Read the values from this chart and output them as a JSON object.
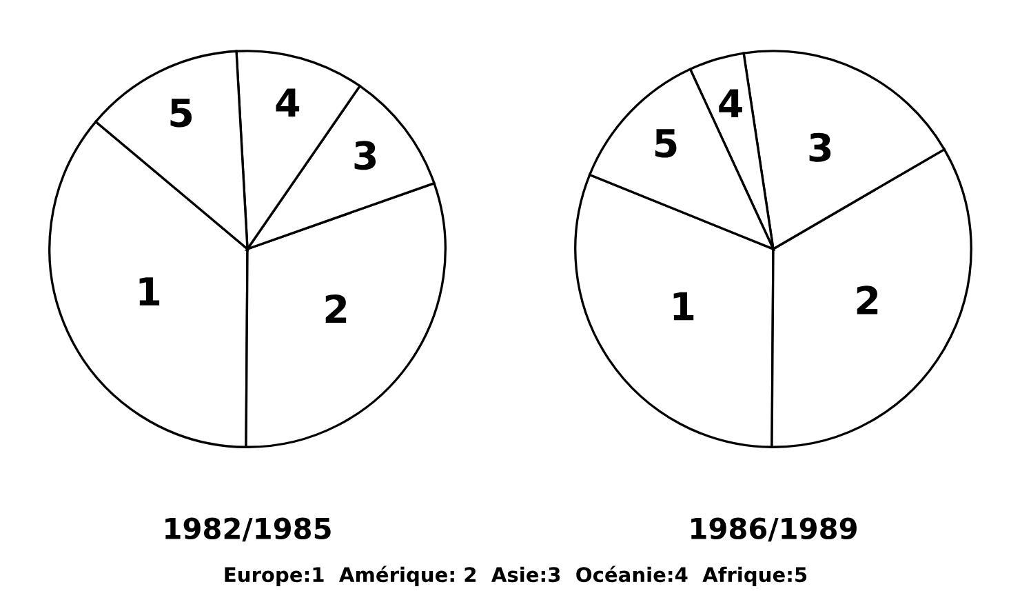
{
  "chart_data": [
    {
      "type": "pie",
      "title": "1982/1985",
      "categories": [
        "1",
        "2",
        "3",
        "4",
        "5"
      ],
      "values": [
        36,
        30.5,
        10,
        10.5,
        13
      ],
      "colors": [
        "#ffffff",
        "#ffffff",
        "#ffffff",
        "#ffffff",
        "#ffffff"
      ],
      "annotations": [
        "Europe:1  Amérique: 2  Asie:3  Océanie:4  Afrique:5"
      ]
    },
    {
      "type": "pie",
      "title": "1986/1989",
      "categories": [
        "1",
        "2",
        "3",
        "4",
        "5"
      ],
      "values": [
        31,
        33.5,
        19,
        4.5,
        12
      ],
      "colors": [
        "#ffffff",
        "#ffffff",
        "#ffffff",
        "#ffffff",
        "#ffffff"
      ]
    }
  ]
}
